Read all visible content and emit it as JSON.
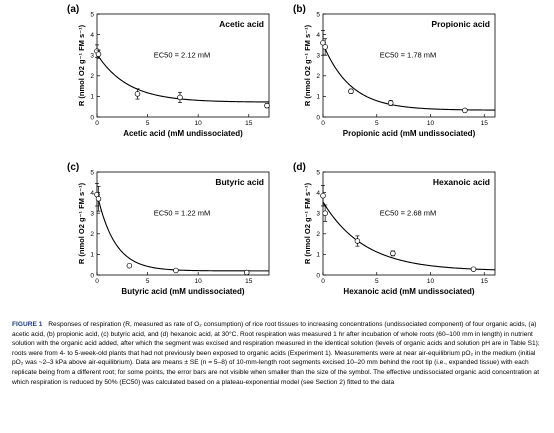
{
  "chart_data": [
    {
      "type": "scatter",
      "panel_label": "(a)",
      "title": "Acetic acid",
      "xlabel": "Acetic acid (mM undissociated)",
      "ylabel": "R (nmol O2 g⁻¹ FM s⁻¹)",
      "xlim": [
        0,
        17
      ],
      "ylim": [
        0,
        5
      ],
      "xticks": [
        0,
        5,
        10,
        15
      ],
      "yticks": [
        0,
        1,
        2,
        3,
        4,
        5
      ],
      "ec50_label": "EC50 = 2.12 mM",
      "fit": {
        "model": "plateau-exponential",
        "r0": 3.05,
        "rmin": 0.72,
        "ec50": 2.12
      },
      "points": [
        {
          "x": 0,
          "y": 3.2,
          "err": 0.3
        },
        {
          "x": 0.15,
          "y": 3.05,
          "err": 0.2
        },
        {
          "x": 4.0,
          "y": 1.12,
          "err": 0.25
        },
        {
          "x": 8.2,
          "y": 0.95,
          "err": 0.25
        },
        {
          "x": 16.8,
          "y": 0.55,
          "err": 0.1
        }
      ]
    },
    {
      "type": "scatter",
      "panel_label": "(b)",
      "title": "Propionic acid",
      "xlabel": "Propionic acid (mM undissociated)",
      "ylabel": "R (nmol O2 g⁻¹ FM s⁻¹)",
      "xlim": [
        0,
        16
      ],
      "ylim": [
        0,
        5
      ],
      "xticks": [
        0,
        5,
        10,
        15
      ],
      "yticks": [
        0,
        1,
        2,
        3,
        4,
        5
      ],
      "ec50_label": "EC50 = 1.78 mM",
      "fit": {
        "model": "plateau-exponential",
        "r0": 3.55,
        "rmin": 0.33,
        "ec50": 1.78
      },
      "points": [
        {
          "x": 0,
          "y": 3.6,
          "err": 0.6
        },
        {
          "x": 0.2,
          "y": 3.4,
          "err": 0.4
        },
        {
          "x": 2.6,
          "y": 1.25,
          "err": 0.1
        },
        {
          "x": 6.3,
          "y": 0.68,
          "err": 0.12
        },
        {
          "x": 13.2,
          "y": 0.32,
          "err": 0.05
        }
      ]
    },
    {
      "type": "scatter",
      "panel_label": "(c)",
      "title": "Butyric acid",
      "xlabel": "Butyric acid (mM undissociated)",
      "ylabel": "R (nmol O2 g⁻¹ FM s⁻¹)",
      "xlim": [
        0,
        17
      ],
      "ylim": [
        0,
        5
      ],
      "xticks": [
        0,
        5,
        10,
        15
      ],
      "yticks": [
        0,
        1,
        2,
        3,
        4,
        5
      ],
      "ec50_label": "EC50 = 1.22 mM",
      "fit": {
        "model": "plateau-exponential",
        "r0": 3.95,
        "rmin": 0.2,
        "ec50": 1.22
      },
      "points": [
        {
          "x": 0,
          "y": 3.9,
          "err": 0.55
        },
        {
          "x": 0.15,
          "y": 3.7,
          "err": 0.6
        },
        {
          "x": 3.2,
          "y": 0.45,
          "err": 0.05
        },
        {
          "x": 7.8,
          "y": 0.22,
          "err": 0.05
        },
        {
          "x": 14.8,
          "y": 0.12,
          "err": 0.08
        }
      ]
    },
    {
      "type": "scatter",
      "panel_label": "(d)",
      "title": "Hexanoic acid",
      "xlabel": "Hexanoic acid (mM undissociated)",
      "ylabel": "R (nmol O2 g⁻¹ FM s⁻¹)",
      "xlim": [
        0,
        16
      ],
      "ylim": [
        0,
        5
      ],
      "xticks": [
        0,
        5,
        10,
        15
      ],
      "yticks": [
        0,
        1,
        2,
        3,
        4,
        5
      ],
      "ec50_label": "EC50 = 2.68 mM",
      "fit": {
        "model": "plateau-exponential",
        "r0": 3.55,
        "rmin": 0.2,
        "ec50": 2.68
      },
      "points": [
        {
          "x": 0,
          "y": 3.85,
          "err": 0.5
        },
        {
          "x": 0.2,
          "y": 3.0,
          "err": 0.4
        },
        {
          "x": 3.2,
          "y": 1.65,
          "err": 0.25
        },
        {
          "x": 6.5,
          "y": 1.05,
          "err": 0.12
        },
        {
          "x": 14.0,
          "y": 0.28,
          "err": 0.05
        }
      ]
    }
  ],
  "caption": {
    "figure_label": "FIGURE 1",
    "text": "Responses of respiration (R, measured as rate of O₂ consumption) of rice root tissues to increasing concentrations (undissociated component) of four organic acids, (a) acetic acid, (b) propionic acid, (c) butyric acid, and (d) hexanoic acid, at 30°C. Root respiration was measured 1 hr after incubation of whole roots (60–100 mm in length) in nutrient solution with the organic acid added, after which the segment was excised and respiration measured in the identical solution (levels of organic acids and solution pH are in Table S1); roots were from 4- to 5-week-old plants that had not previously been exposed to organic acids (Experiment 1). Measurements were at near air-equilibrium pO₂ in the medium (initial pO₂ was ~2–3 kPa above air-equilibrium). Data are means ± SE (n = 5–8) of 10-mm-length root segments excised 10–20 mm behind the root tip (i.e., expanded tissue) with each replicate being from a different root; for some points, the error bars are not visible when smaller than the size of the symbol. The effective undissociated organic acid concentration at which respiration is reduced by 50% (EC50) was calculated based on a plateau-exponential model (see Section 2) fitted to the data"
  }
}
